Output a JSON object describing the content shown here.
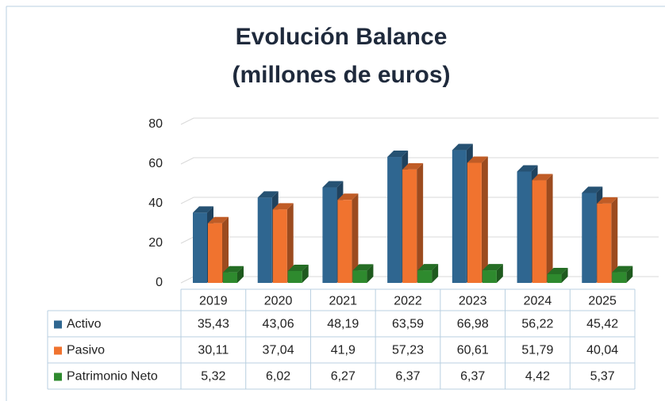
{
  "chart_data": {
    "type": "bar",
    "title": "Evolución Balance",
    "subtitle": "(millones de euros)",
    "categories": [
      "2019",
      "2020",
      "2021",
      "2022",
      "2023",
      "2024",
      "2025"
    ],
    "series": [
      {
        "name": "Activo",
        "color": "#2f6690",
        "values": [
          35.43,
          43.06,
          48.19,
          63.59,
          66.98,
          56.22,
          45.42
        ],
        "value_labels": [
          "35,43",
          "43,06",
          "48,19",
          "63,59",
          "66,98",
          "56,22",
          "45,42"
        ]
      },
      {
        "name": "Pasivo",
        "color": "#f0732f",
        "values": [
          30.11,
          37.04,
          41.9,
          57.23,
          60.61,
          51.79,
          40.04
        ],
        "value_labels": [
          "30,11",
          "37,04",
          "41,9",
          "57,23",
          "60,61",
          "51,79",
          "40,04"
        ]
      },
      {
        "name": "Patrimonio Neto",
        "color": "#2e8a2e",
        "values": [
          5.32,
          6.02,
          6.27,
          6.37,
          6.37,
          4.42,
          5.37
        ],
        "value_labels": [
          "5,32",
          "6,02",
          "6,27",
          "6,37",
          "6,37",
          "4,42",
          "5,37"
        ]
      }
    ],
    "ylim": [
      0,
      80
    ],
    "yticks": [
      0,
      20,
      40,
      60,
      80
    ],
    "grid": true
  }
}
